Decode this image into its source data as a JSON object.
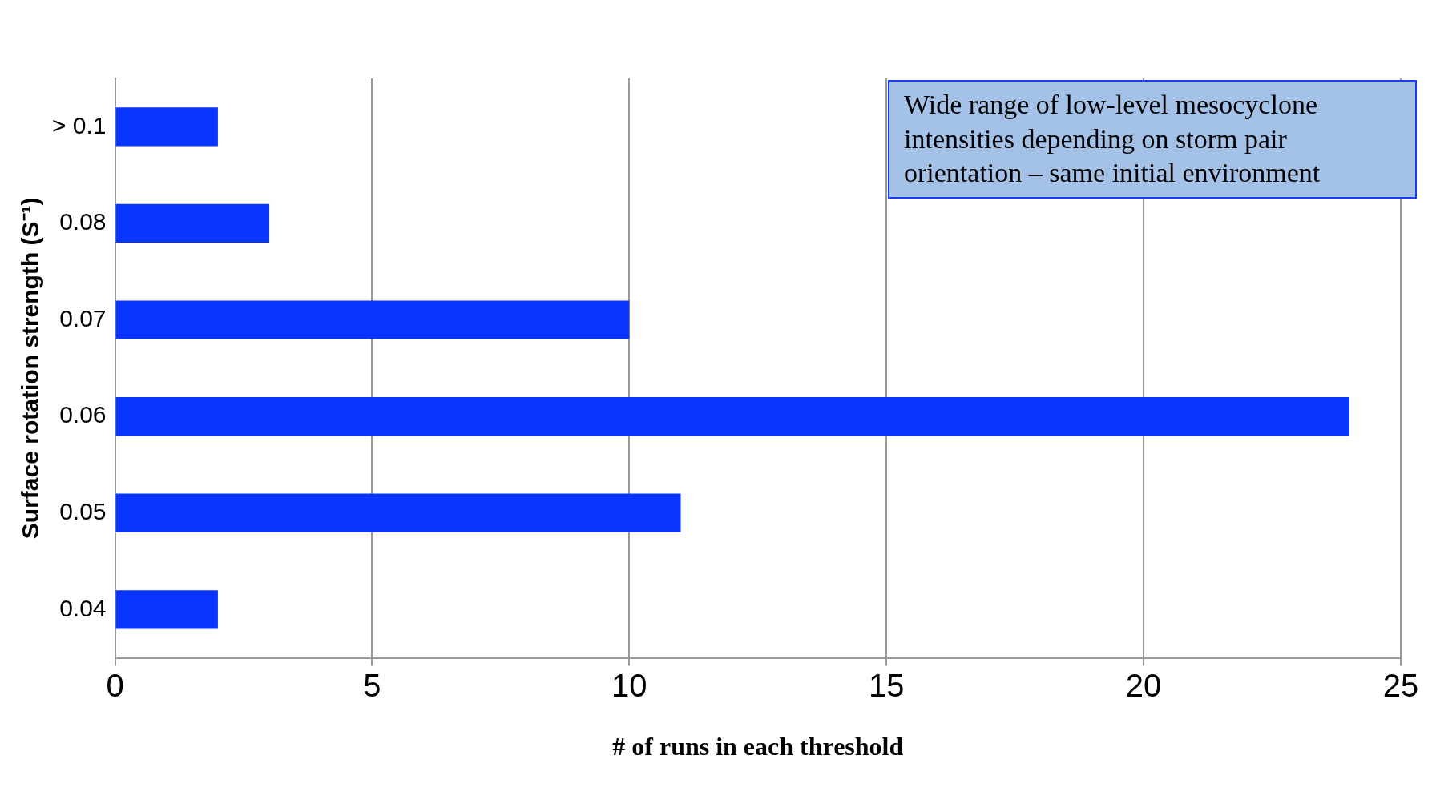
{
  "chart_data": {
    "type": "bar",
    "orientation": "horizontal",
    "xlabel": "# of runs in each threshold",
    "ylabel": "Surface rotation strength (S⁻¹)",
    "categories": [
      "> 0.1",
      "0.08",
      "0.07",
      "0.06",
      "0.05",
      "0.04"
    ],
    "values": [
      2,
      3,
      10,
      24,
      11,
      2
    ],
    "color": "#0a34ff",
    "xlim": [
      0,
      25
    ],
    "xticks": [
      0,
      5,
      10,
      15,
      20,
      25
    ],
    "grid": "x",
    "legend": false,
    "annotations": [
      "Wide range of low-level mesocyclone intensities depending on storm pair orientation – same initial environment"
    ]
  }
}
